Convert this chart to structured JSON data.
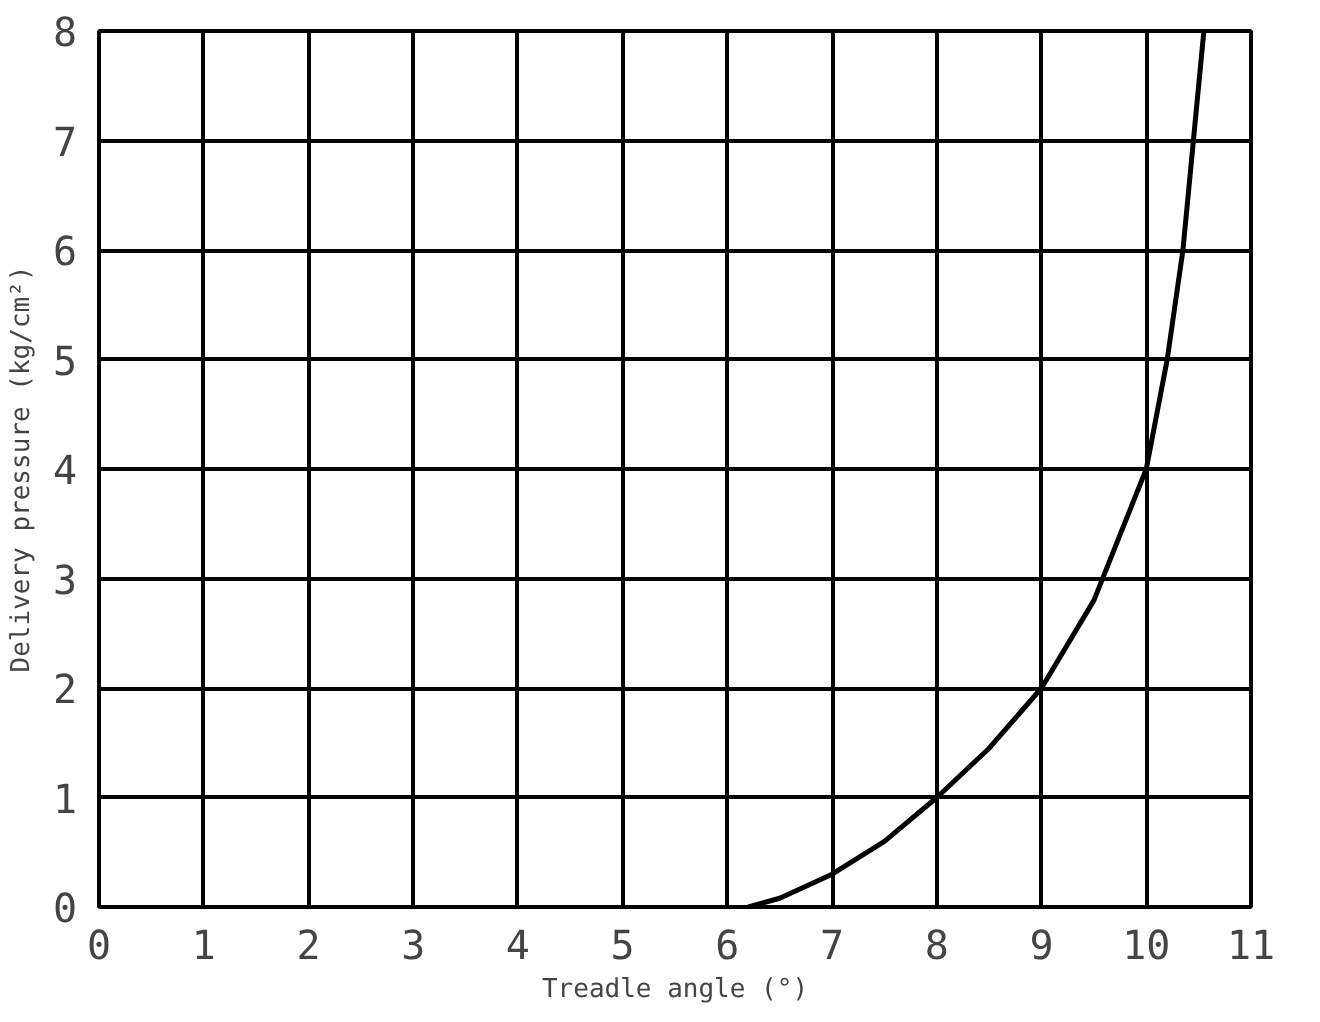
{
  "chart_data": {
    "type": "line",
    "xlabel": "Treadle angle (°)",
    "ylabel": "Delivery pressure (kg/cm²)",
    "x": [
      6.2,
      6.5,
      7,
      7.5,
      8,
      8.5,
      9,
      9.5,
      10,
      10.2,
      10.35,
      10.45,
      10.55
    ],
    "series": [
      {
        "color": "#000000",
        "values": [
          0,
          0.08,
          0.3,
          0.6,
          1,
          1.45,
          2,
          2.8,
          4,
          5,
          6,
          7,
          8
        ]
      }
    ],
    "xlim": [
      0,
      11
    ],
    "ylim": [
      0,
      8
    ],
    "xticks": [
      0,
      1,
      2,
      3,
      4,
      5,
      6,
      7,
      8,
      9,
      10,
      11
    ],
    "yticks": [
      0,
      1,
      2,
      3,
      4,
      5,
      6,
      7,
      8
    ],
    "grid": true,
    "marker": "none",
    "line_style": "solid"
  }
}
